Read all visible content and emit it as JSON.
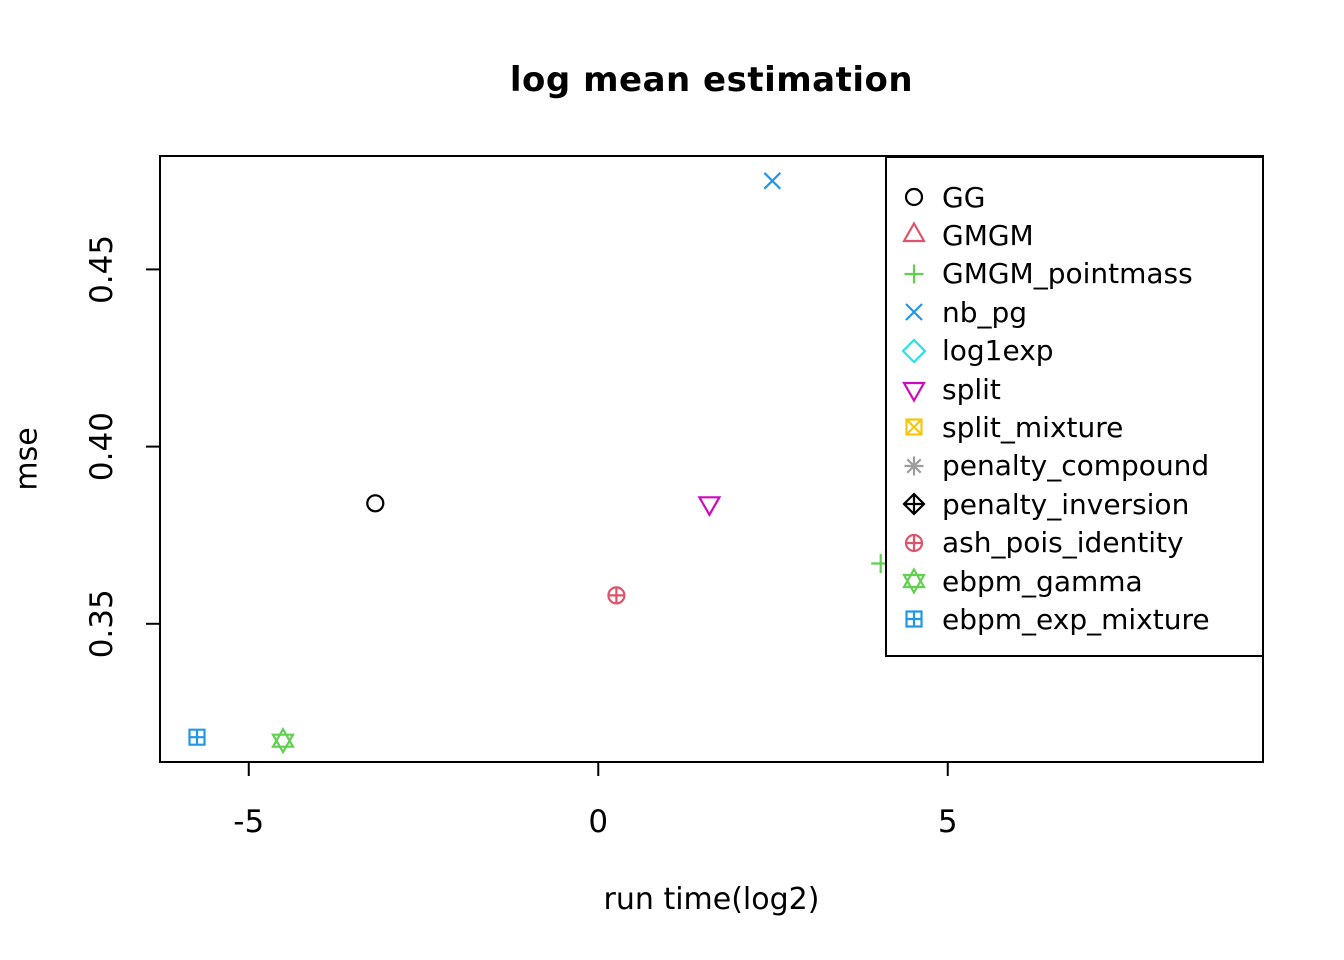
{
  "chart_data": {
    "type": "scatter",
    "title": "log mean estimation",
    "xlabel": "run time(log2)",
    "ylabel": "mse",
    "xlim": [
      -6.27,
      9.51
    ],
    "ylim": [
      0.311,
      0.482
    ],
    "x_ticks": [
      -5,
      0,
      5
    ],
    "x_tick_labels": [
      "-5",
      "0",
      "5"
    ],
    "y_ticks": [
      0.35,
      0.4,
      0.45
    ],
    "y_tick_labels": [
      "0.35",
      "0.40",
      "0.45"
    ],
    "grid": false,
    "legend_position": "top-right",
    "axis_color": "#000000",
    "text_color": "#000000",
    "background_color": "#ffffff",
    "series": [
      {
        "name": "GG",
        "color": "#000000",
        "symbol": "circle",
        "points": [
          [
            -3.19,
            0.384
          ]
        ]
      },
      {
        "name": "GMGM",
        "color": "#DF536B",
        "symbol": "triangle-up",
        "points": []
      },
      {
        "name": "GMGM_pointmass",
        "color": "#61D04F",
        "symbol": "plus",
        "points": [
          [
            4.04,
            0.367
          ]
        ]
      },
      {
        "name": "nb_pg",
        "color": "#2297E6",
        "symbol": "x",
        "points": [
          [
            2.49,
            0.475
          ]
        ]
      },
      {
        "name": "log1exp",
        "color": "#28E2E5",
        "symbol": "diamond",
        "points": []
      },
      {
        "name": "split",
        "color": "#CD0BBC",
        "symbol": "triangle-down",
        "points": [
          [
            1.59,
            0.384
          ]
        ]
      },
      {
        "name": "split_mixture",
        "color": "#F5C710",
        "symbol": "square-x",
        "points": []
      },
      {
        "name": "penalty_compound",
        "color": "#9E9E9E",
        "symbol": "asterisk",
        "points": []
      },
      {
        "name": "penalty_inversion",
        "color": "#000000",
        "symbol": "diamond-plus",
        "points": []
      },
      {
        "name": "ash_pois_identity",
        "color": "#DF536B",
        "symbol": "circle-plus",
        "points": [
          [
            0.26,
            0.358
          ]
        ]
      },
      {
        "name": "ebpm_gamma",
        "color": "#61D04F",
        "symbol": "hexagram",
        "points": [
          [
            -4.51,
            0.317
          ]
        ]
      },
      {
        "name": "ebpm_exp_mixture",
        "color": "#2297E6",
        "symbol": "square-plus",
        "points": [
          [
            -5.74,
            0.318
          ]
        ]
      }
    ]
  }
}
